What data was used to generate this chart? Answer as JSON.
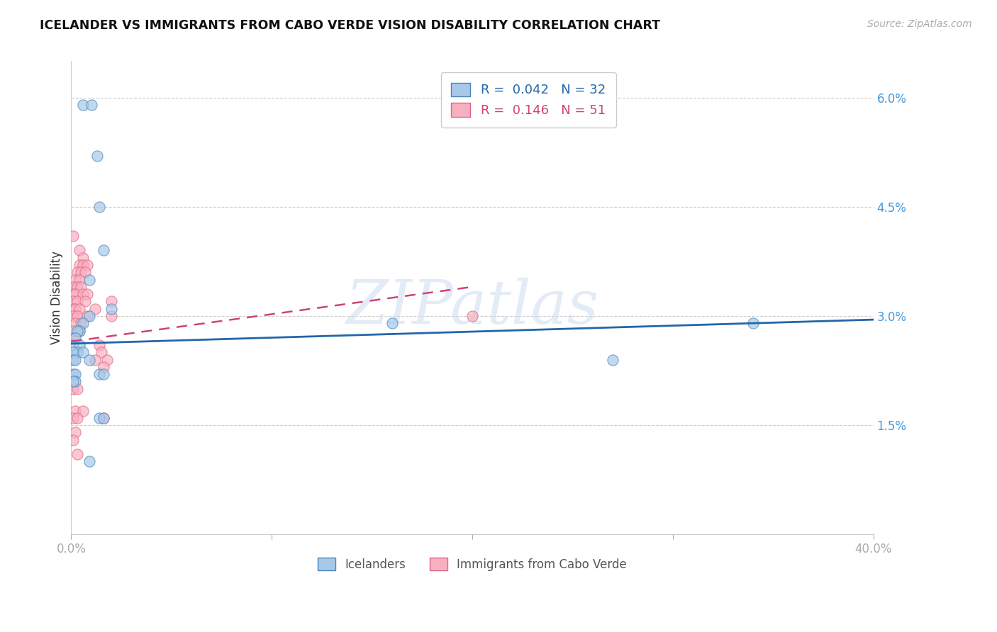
{
  "title": "ICELANDER VS IMMIGRANTS FROM CABO VERDE VISION DISABILITY CORRELATION CHART",
  "source": "Source: ZipAtlas.com",
  "ylabel": "Vision Disability",
  "xlim": [
    0.0,
    0.4
  ],
  "ylim": [
    0.0,
    0.065
  ],
  "ytick_vals": [
    0.0,
    0.015,
    0.03,
    0.045,
    0.06
  ],
  "ytick_labels": [
    "",
    "1.5%",
    "3.0%",
    "4.5%",
    "6.0%"
  ],
  "xtick_vals": [
    0.0,
    0.1,
    0.2,
    0.3,
    0.4
  ],
  "xtick_labels": [
    "0.0%",
    "",
    "",
    "",
    "40.0%"
  ],
  "legend_R_blue": "0.042",
  "legend_N_blue": "32",
  "legend_R_pink": "0.146",
  "legend_N_pink": "51",
  "blue_scatter_color": "#a8c8e8",
  "blue_edge_color": "#4488bb",
  "pink_scatter_color": "#f8b0c0",
  "pink_edge_color": "#dd6688",
  "trendline_blue": "#2266aa",
  "trendline_pink": "#cc4477",
  "watermark": "ZIPatlas",
  "blue_scatter": [
    [
      0.006,
      0.059
    ],
    [
      0.01,
      0.059
    ],
    [
      0.013,
      0.052
    ],
    [
      0.014,
      0.045
    ],
    [
      0.016,
      0.039
    ],
    [
      0.009,
      0.035
    ],
    [
      0.02,
      0.031
    ],
    [
      0.009,
      0.03
    ],
    [
      0.006,
      0.029
    ],
    [
      0.004,
      0.028
    ],
    [
      0.003,
      0.028
    ],
    [
      0.002,
      0.027
    ],
    [
      0.001,
      0.026
    ],
    [
      0.004,
      0.026
    ],
    [
      0.003,
      0.025
    ],
    [
      0.001,
      0.025
    ],
    [
      0.006,
      0.025
    ],
    [
      0.001,
      0.024
    ],
    [
      0.002,
      0.024
    ],
    [
      0.009,
      0.024
    ],
    [
      0.001,
      0.022
    ],
    [
      0.002,
      0.022
    ],
    [
      0.014,
      0.022
    ],
    [
      0.016,
      0.022
    ],
    [
      0.002,
      0.021
    ],
    [
      0.001,
      0.021
    ],
    [
      0.014,
      0.016
    ],
    [
      0.016,
      0.016
    ],
    [
      0.009,
      0.01
    ],
    [
      0.16,
      0.029
    ],
    [
      0.34,
      0.029
    ],
    [
      0.27,
      0.024
    ]
  ],
  "pink_scatter": [
    [
      0.001,
      0.041
    ],
    [
      0.004,
      0.039
    ],
    [
      0.006,
      0.038
    ],
    [
      0.004,
      0.037
    ],
    [
      0.006,
      0.037
    ],
    [
      0.008,
      0.037
    ],
    [
      0.003,
      0.036
    ],
    [
      0.005,
      0.036
    ],
    [
      0.007,
      0.036
    ],
    [
      0.002,
      0.035
    ],
    [
      0.004,
      0.035
    ],
    [
      0.001,
      0.034
    ],
    [
      0.003,
      0.034
    ],
    [
      0.005,
      0.034
    ],
    [
      0.001,
      0.033
    ],
    [
      0.002,
      0.033
    ],
    [
      0.006,
      0.033
    ],
    [
      0.008,
      0.033
    ],
    [
      0.001,
      0.032
    ],
    [
      0.003,
      0.032
    ],
    [
      0.007,
      0.032
    ],
    [
      0.001,
      0.031
    ],
    [
      0.002,
      0.031
    ],
    [
      0.004,
      0.031
    ],
    [
      0.001,
      0.03
    ],
    [
      0.003,
      0.03
    ],
    [
      0.008,
      0.03
    ],
    [
      0.002,
      0.029
    ],
    [
      0.005,
      0.029
    ],
    [
      0.001,
      0.028
    ],
    [
      0.004,
      0.028
    ],
    [
      0.001,
      0.027
    ],
    [
      0.012,
      0.031
    ],
    [
      0.02,
      0.032
    ],
    [
      0.014,
      0.026
    ],
    [
      0.015,
      0.025
    ],
    [
      0.012,
      0.024
    ],
    [
      0.018,
      0.024
    ],
    [
      0.016,
      0.023
    ],
    [
      0.001,
      0.02
    ],
    [
      0.003,
      0.02
    ],
    [
      0.002,
      0.017
    ],
    [
      0.006,
      0.017
    ],
    [
      0.001,
      0.016
    ],
    [
      0.003,
      0.016
    ],
    [
      0.016,
      0.016
    ],
    [
      0.002,
      0.014
    ],
    [
      0.001,
      0.013
    ],
    [
      0.003,
      0.011
    ],
    [
      0.02,
      0.03
    ],
    [
      0.2,
      0.03
    ]
  ],
  "blue_trend_x": [
    0.0,
    0.4
  ],
  "blue_trend_y": [
    0.0262,
    0.0295
  ],
  "pink_trend_x": [
    0.0,
    0.2
  ],
  "pink_trend_y": [
    0.0265,
    0.034
  ]
}
